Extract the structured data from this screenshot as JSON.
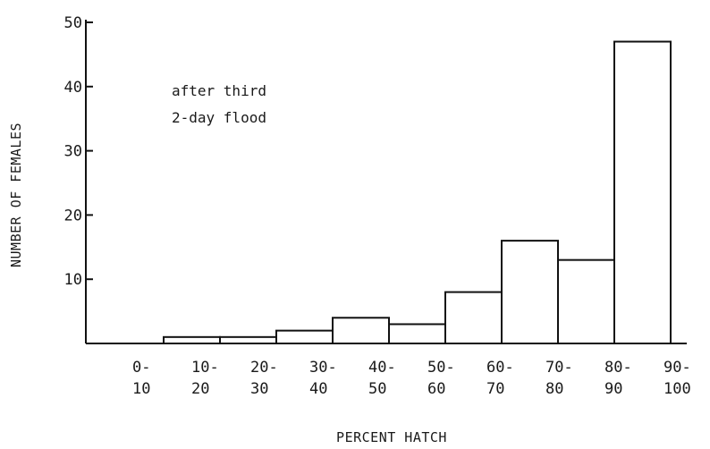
{
  "chart_data": {
    "type": "bar",
    "title": "",
    "xlabel": "PERCENT HATCH",
    "ylabel": "NUMBER OF FEMALES",
    "annotation": [
      "after third",
      "2-day flood"
    ],
    "categories": [
      [
        "0-",
        "10"
      ],
      [
        "10-",
        "20"
      ],
      [
        "20-",
        "30"
      ],
      [
        "30-",
        "40"
      ],
      [
        "40-",
        "50"
      ],
      [
        "50-",
        "60"
      ],
      [
        "60-",
        "70"
      ],
      [
        "70-",
        "80"
      ],
      [
        "80-",
        "90"
      ],
      [
        "90-",
        "100"
      ]
    ],
    "values": [
      0,
      1,
      1,
      2,
      4,
      3,
      8,
      16,
      13,
      47
    ],
    "ylim": [
      0,
      50
    ],
    "yticks": [
      10,
      20,
      30,
      40,
      50
    ],
    "grid": false,
    "legend": "none"
  }
}
